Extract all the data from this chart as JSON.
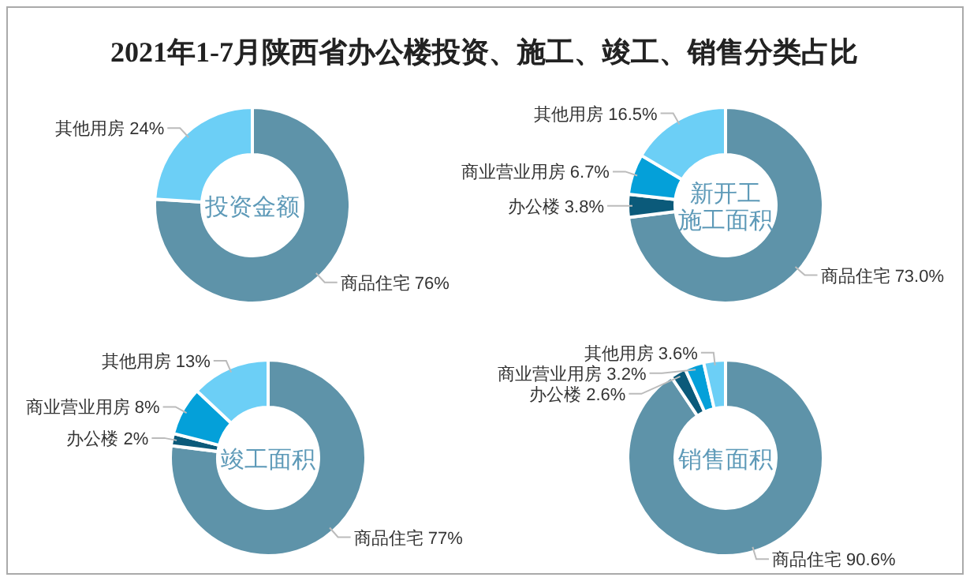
{
  "chart_data": [
    {
      "type": "donut",
      "title": "投资金额",
      "annotations": [
        "2021年1-7月陕西省办公楼投资、施工、竣工、销售分类占比"
      ],
      "categories": [
        "商品住宅",
        "其他用房"
      ],
      "values": [
        76,
        24
      ],
      "value_labels": [
        "76%",
        "24%"
      ],
      "colors": [
        "#5e93a9",
        "#6ccff6"
      ]
    },
    {
      "type": "donut",
      "title": "新开工施工面积",
      "categories": [
        "商品住宅",
        "办公楼",
        "商业营业用房",
        "其他用房"
      ],
      "values": [
        73.0,
        3.8,
        6.7,
        16.5
      ],
      "value_labels": [
        "73.0%",
        "3.8%",
        "6.7%",
        "16.5%"
      ],
      "colors": [
        "#5e93a9",
        "#0b5a7a",
        "#04a0d9",
        "#6ccff6"
      ]
    },
    {
      "type": "donut",
      "title": "竣工面积",
      "categories": [
        "商品住宅",
        "办公楼",
        "商业营业用房",
        "其他用房"
      ],
      "values": [
        77,
        2,
        8,
        13
      ],
      "value_labels": [
        "77%",
        "2%",
        "8%",
        "13%"
      ],
      "colors": [
        "#5e93a9",
        "#0b5a7a",
        "#04a0d9",
        "#6ccff6"
      ]
    },
    {
      "type": "donut",
      "title": "销售面积",
      "categories": [
        "商品住宅",
        "办公楼",
        "商业营业用房",
        "其他用房"
      ],
      "values": [
        90.6,
        2.6,
        3.2,
        3.6
      ],
      "value_labels": [
        "90.6%",
        "2.6%",
        "3.2%",
        "3.6%"
      ],
      "colors": [
        "#5e93a9",
        "#0b5a7a",
        "#04a0d9",
        "#6ccff6"
      ]
    }
  ]
}
